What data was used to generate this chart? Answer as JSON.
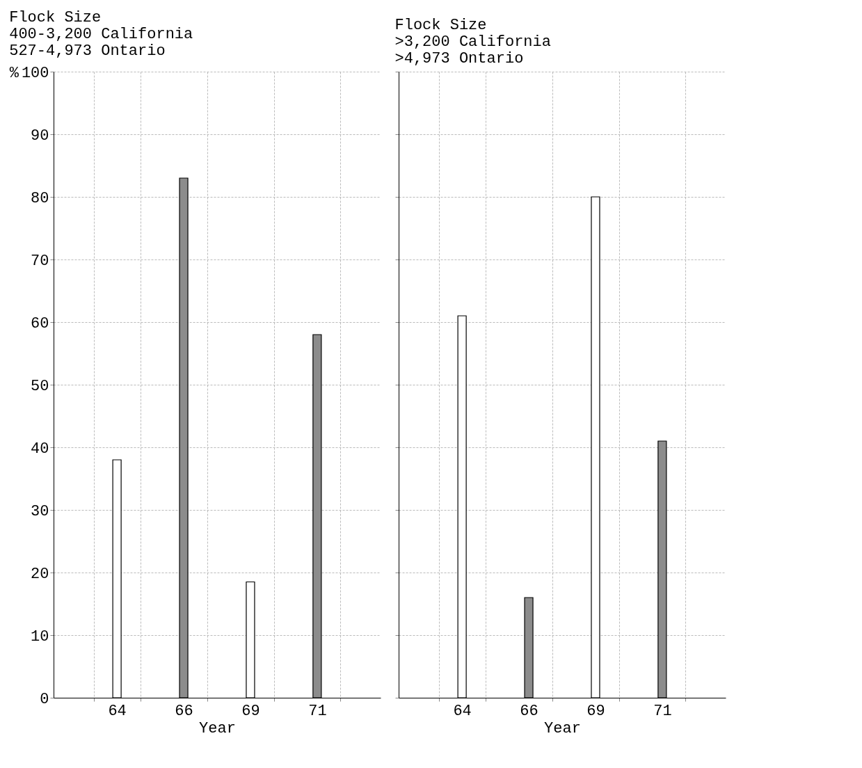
{
  "chart_data": [
    {
      "type": "bar",
      "annotations": [
        "Flock Size",
        "400-3,200 California",
        "527-4,973 Ontario"
      ],
      "xlabel": "Year",
      "ylabel": "%",
      "categories": [
        "64",
        "66",
        "69",
        "71"
      ],
      "values": [
        38,
        83,
        18.5,
        58
      ],
      "colors": [
        "#ffffff",
        "#8c8c8c",
        "#ffffff",
        "#8c8c8c"
      ],
      "ylim": [
        0,
        100
      ],
      "yticks": [
        0,
        10,
        20,
        30,
        40,
        50,
        60,
        70,
        80,
        90,
        100
      ],
      "grid": true
    },
    {
      "type": "bar",
      "annotations": [
        "Flock Size",
        ">3,200 California",
        ">4,973 Ontario"
      ],
      "xlabel": "Year",
      "categories": [
        "64",
        "66",
        "69",
        "71"
      ],
      "values": [
        61,
        16,
        80,
        41
      ],
      "colors": [
        "#ffffff",
        "#8c8c8c",
        "#ffffff",
        "#8c8c8c"
      ],
      "ylim": [
        0,
        100
      ],
      "yticks": [
        0,
        10,
        20,
        30,
        40,
        50,
        60,
        70,
        80,
        90,
        100
      ],
      "grid": true,
      "tick_labels": "x"
    }
  ]
}
